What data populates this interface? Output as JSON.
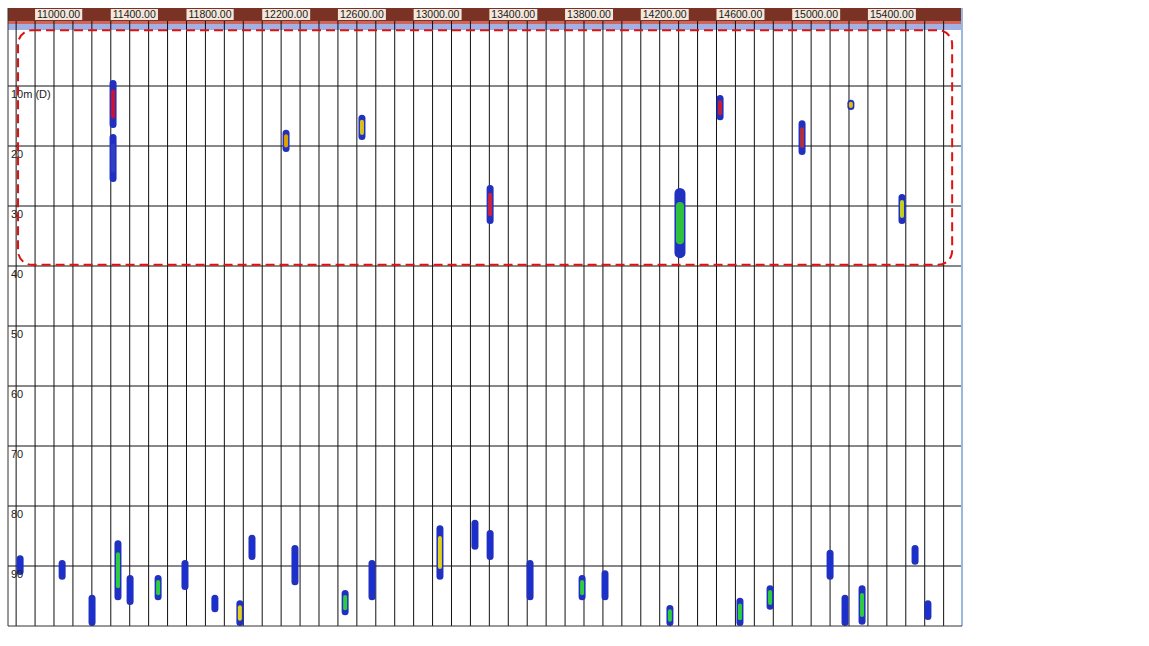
{
  "chart_data": {
    "type": "echogram",
    "xlim": [
      10857,
      15897
    ],
    "ylim": [
      -3,
      100
    ],
    "xticks": [
      {
        "value": 11000,
        "label": "11000.00"
      },
      {
        "value": 11400,
        "label": "11400.00"
      },
      {
        "value": 11800,
        "label": "11800.00"
      },
      {
        "value": 12200,
        "label": "12200.00"
      },
      {
        "value": 12600,
        "label": "12600.00"
      },
      {
        "value": 13000,
        "label": "13000.00"
      },
      {
        "value": 13400,
        "label": "13400.00"
      },
      {
        "value": 13800,
        "label": "13800.00"
      },
      {
        "value": 14200,
        "label": "14200.00"
      },
      {
        "value": 14600,
        "label": "14600.00"
      },
      {
        "value": 15000,
        "label": "15000.00"
      },
      {
        "value": 15400,
        "label": "15400.00"
      }
    ],
    "xgrid": [
      10900,
      11000,
      11100,
      11200,
      11300,
      11400,
      11500,
      11600,
      11700,
      11800,
      11900,
      12000,
      12100,
      12200,
      12300,
      12400,
      12500,
      12600,
      12700,
      12800,
      12900,
      13000,
      13100,
      13200,
      13300,
      13400,
      13500,
      13600,
      13700,
      13800,
      13900,
      14000,
      14100,
      14200,
      14300,
      14400,
      14500,
      14600,
      14700,
      14800,
      14900,
      15000,
      15100,
      15200,
      15300,
      15400,
      15500,
      15600,
      15700,
      15800
    ],
    "yticks": [
      {
        "value": 10,
        "label": "10m (D)"
      },
      20,
      30,
      40,
      50,
      60,
      70,
      80,
      90
    ],
    "grid": true,
    "echoes": {
      "x": [
        11412,
        11412,
        12326,
        12727,
        13404,
        14407,
        14619,
        15052,
        15310,
        15580,
        10921,
        11143,
        11301,
        11438,
        11502,
        11650,
        11792,
        11950,
        12082,
        12146,
        12373,
        12638,
        12780,
        13139,
        13324,
        13404,
        13615,
        13890,
        14011,
        14354,
        14724,
        14883,
        15200,
        15279,
        15369,
        15649,
        15717
      ],
      "top": [
        9,
        18,
        17.3,
        14.8,
        26.5,
        27,
        11.5,
        15.7,
        12.3,
        28,
        88.2,
        89,
        94.8,
        85.7,
        91.5,
        91.5,
        89,
        94.8,
        95.7,
        84.8,
        86.5,
        94,
        89,
        83.2,
        82.3,
        84,
        89,
        91.5,
        90.7,
        96.5,
        95.3,
        93.2,
        87.3,
        94.8,
        93.2,
        86.5,
        95.7
      ],
      "bottom": [
        17,
        26,
        21,
        19,
        33,
        38.7,
        15.7,
        21.5,
        14,
        33,
        91.5,
        92.3,
        100,
        95.7,
        96.5,
        95.7,
        94,
        97.7,
        100,
        89,
        93.2,
        98.2,
        95.7,
        92.3,
        87.3,
        89,
        95.7,
        95.7,
        95.7,
        100,
        100,
        97.3,
        92.3,
        100,
        99.8,
        89.8,
        99
      ],
      "colors": [
        "#d01030",
        "#3040c0",
        "#e0a000",
        "#d8c020",
        "#d02040",
        "#30c040",
        "#c02040",
        "#b03040",
        "#e0c000",
        "#c0d020",
        "#1a2fd0",
        "#1a2fd0",
        "#1a2fd0",
        "#2ecc40",
        "#1a2fd0",
        "#2ecc40",
        "#1a2fd0",
        "#1a2fd0",
        "#e0d020",
        "#1a2fd0",
        "#1a2fd0",
        "#2ecc40",
        "#1a2fd0",
        "#e0d020",
        "#1a2fd0",
        "#1a2fd0",
        "#1a2fd0",
        "#2ecc40",
        "#1a2fd0",
        "#2ecc40",
        "#2ecc40",
        "#2ecc40",
        "#1a2fd0",
        "#1a2fd0",
        "#2ecc40",
        "#1a2fd0",
        "#1a2fd0"
      ]
    },
    "highlight": {
      "x": [
        10910,
        15845
      ],
      "depth": [
        0.7,
        39.8
      ]
    }
  }
}
